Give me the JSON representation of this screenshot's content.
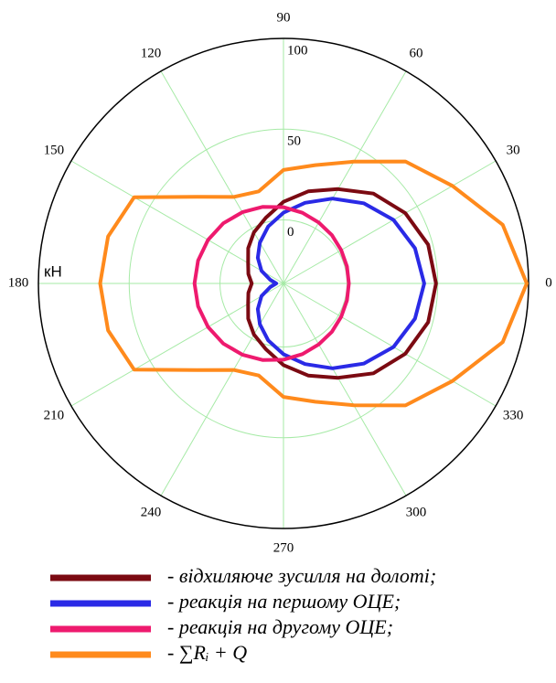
{
  "chart_data": {
    "type": "polar",
    "r_label": "кН",
    "rlim": [
      -35,
      100
    ],
    "rticks": [
      0,
      50,
      100
    ],
    "thetaticks": [
      0,
      30,
      60,
      90,
      120,
      150,
      180,
      210,
      240,
      270,
      300,
      330
    ],
    "grid": true,
    "theta": [
      0,
      15,
      30,
      45,
      60,
      75,
      90,
      105,
      120,
      135,
      150,
      165,
      180,
      195,
      210,
      225,
      240,
      255,
      270,
      285,
      300,
      315,
      330,
      345
    ],
    "series": [
      {
        "name": "- відхиляюче зусилля на долоті;",
        "color": "#7b0a12",
        "values": [
          49,
          47.5,
          42.5,
          35,
          25,
          17.5,
          10,
          2.5,
          -2.5,
          -7.5,
          -12.5,
          -15,
          -17.5,
          -15,
          -12.5,
          -7.5,
          -2.5,
          2.5,
          10,
          17.5,
          25,
          35,
          42.5,
          47.5
        ]
      },
      {
        "name": "- реакція на першому ОЦЕ;",
        "color": "#2a2ae6",
        "values": [
          42.5,
          40,
          35,
          27.5,
          19,
          11,
          4,
          -2.5,
          -9,
          -15,
          -21,
          -27.5,
          -31,
          -27.5,
          -21,
          -15,
          -9,
          -2.5,
          4,
          11,
          19,
          27.5,
          35,
          40
        ]
      },
      {
        "name": "- реакція на другому ОЦЕ;",
        "color": "#ee1a6e",
        "values": [
          1,
          1.2,
          1.7,
          2.7,
          3.8,
          5.3,
          7,
          8.7,
          10.3,
          11.9,
          13,
          13.7,
          14,
          13.7,
          13,
          11.9,
          10.3,
          8.7,
          7,
          5.3,
          3.8,
          2.7,
          1.7,
          1.2
        ]
      },
      {
        "name": "- ∑Rᵢ + Q",
        "color": "#ff8a1c",
        "values": [
          99,
          90,
          72.5,
          60,
          42.5,
          32.5,
          27.5,
          17.5,
          20,
          32.5,
          60,
          65,
          66,
          65,
          60,
          32.5,
          20,
          17.5,
          27.5,
          32.5,
          42.5,
          60,
          72.5,
          90
        ]
      }
    ]
  }
}
